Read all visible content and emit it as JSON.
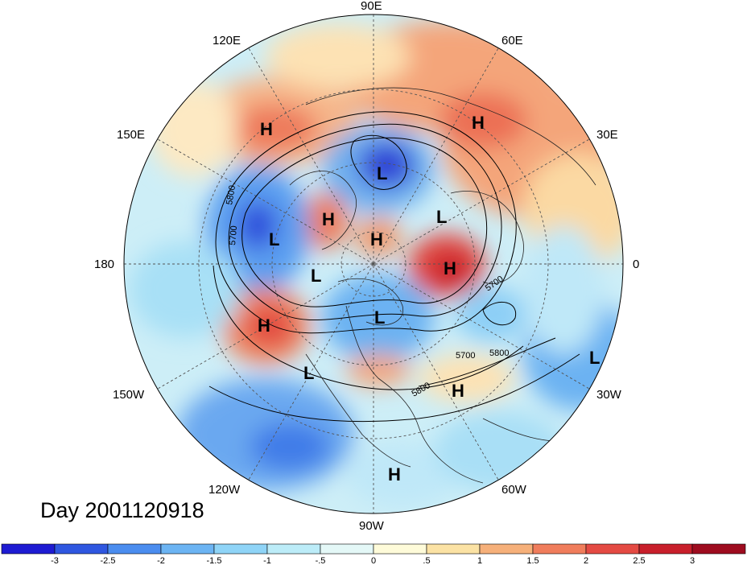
{
  "map": {
    "title": "Day 2001120918",
    "projection": "north-polar-stereographic",
    "lon_labels": [
      {
        "text": "90E",
        "lon": 90
      },
      {
        "text": "60E",
        "lon": 60
      },
      {
        "text": "30E",
        "lon": 30
      },
      {
        "text": "0",
        "lon": 0
      },
      {
        "text": "30W",
        "lon": -30
      },
      {
        "text": "60W",
        "lon": -60
      },
      {
        "text": "90W",
        "lon": -90
      },
      {
        "text": "120W",
        "lon": -120
      },
      {
        "text": "150W",
        "lon": -150
      },
      {
        "text": "180",
        "lon": 180
      },
      {
        "text": "150E",
        "lon": 150
      },
      {
        "text": "120E",
        "lon": 120
      }
    ],
    "pressure_centers": [
      {
        "type": "H",
        "region": "east-siberia"
      },
      {
        "type": "H",
        "region": "siberia-west"
      },
      {
        "type": "L",
        "region": "kara-sea"
      },
      {
        "type": "H",
        "region": "bering"
      },
      {
        "type": "L",
        "region": "north-pacific"
      },
      {
        "type": "H",
        "region": "arctic"
      },
      {
        "type": "L",
        "region": "scandinavia"
      },
      {
        "type": "H",
        "region": "greenland"
      },
      {
        "type": "L",
        "region": "alaska"
      },
      {
        "type": "L",
        "region": "hudson-bay"
      },
      {
        "type": "H",
        "region": "gulf-of-alaska"
      },
      {
        "type": "L",
        "region": "west-us"
      },
      {
        "type": "H",
        "region": "mid-atlantic"
      },
      {
        "type": "L",
        "region": "west-africa"
      },
      {
        "type": "H",
        "region": "caribbean"
      }
    ],
    "contour_labels": [
      "5800",
      "5700",
      "5700",
      "5700",
      "5800",
      "5800"
    ]
  },
  "colorbar": {
    "labels": [
      "-3",
      "-2.5",
      "-2",
      "-1.5",
      "-1",
      "-.5",
      "0",
      ".5",
      "1",
      "1.5",
      "2",
      "2.5",
      "3"
    ],
    "colors": [
      "#1e1bd2",
      "#2f57e0",
      "#4b8def",
      "#6cb4f3",
      "#8fd4f7",
      "#bcecf8",
      "#e4f8f7",
      "#fefbd9",
      "#fbe2a4",
      "#f6b07a",
      "#f07d5c",
      "#e44a43",
      "#c81f2b",
      "#9e0c1f"
    ]
  }
}
